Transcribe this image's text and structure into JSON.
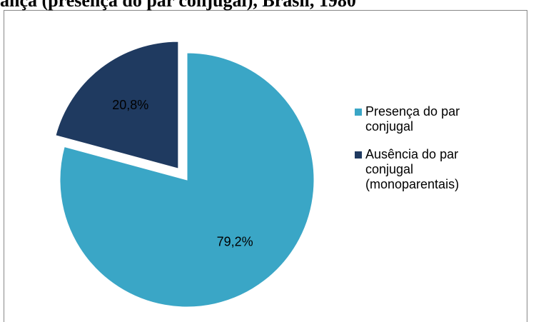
{
  "chart_data": {
    "type": "pie",
    "title": "ança (presença do par conjugal), Brasil, 1980",
    "categories": [
      "Presença do par conjugal",
      "Ausência do par conjugal (monoparentais)"
    ],
    "values": [
      79.2,
      20.8
    ],
    "value_labels": [
      "79,2%",
      "20,8%"
    ],
    "colors": [
      "#3aa6c6",
      "#1f3a60"
    ],
    "exploded": [
      false,
      true
    ],
    "legend": "right"
  }
}
